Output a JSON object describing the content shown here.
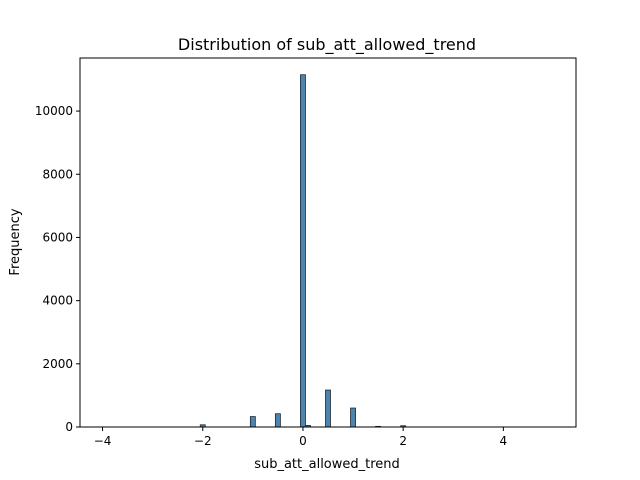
{
  "chart_data": {
    "type": "bar",
    "title": "Distribution of sub_att_allowed_trend",
    "xlabel": "sub_att_allowed_trend",
    "ylabel": "Frequency",
    "xlim": [
      -4.45,
      5.45
    ],
    "ylim": [
      0,
      11680
    ],
    "xticks": [
      -4,
      -2,
      0,
      2,
      4
    ],
    "xtick_labels": [
      "−4",
      "−2",
      "0",
      "2",
      "4"
    ],
    "yticks": [
      0,
      2000,
      4000,
      6000,
      8000,
      10000
    ],
    "ytick_labels": [
      "0",
      "2000",
      "4000",
      "6000",
      "8000",
      "10000"
    ],
    "grid": false,
    "bar_color": "#4c84ae",
    "edge_color": "#1f2a33",
    "bins": [
      {
        "x": -4.0,
        "value": 3
      },
      {
        "x": -2.0,
        "value": 70
      },
      {
        "x": -1.0,
        "value": 330
      },
      {
        "x": -0.5,
        "value": 420
      },
      {
        "x": 0.0,
        "value": 11150
      },
      {
        "x": 0.1,
        "value": 50
      },
      {
        "x": 0.5,
        "value": 1170
      },
      {
        "x": 1.0,
        "value": 600
      },
      {
        "x": 1.5,
        "value": 20
      },
      {
        "x": 2.0,
        "value": 40
      },
      {
        "x": 5.0,
        "value": 3
      }
    ]
  }
}
